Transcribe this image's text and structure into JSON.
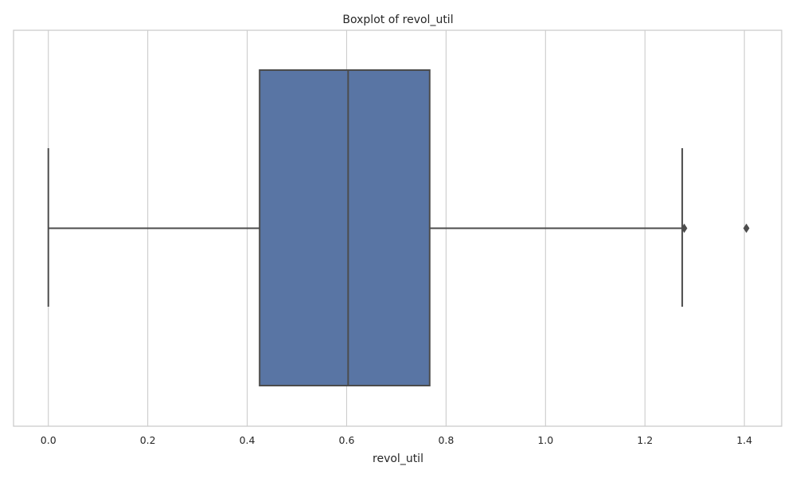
{
  "chart_data": {
    "type": "boxplot",
    "title": "Boxplot of revol_util",
    "xlabel": "revol_util",
    "ylabel": "",
    "xlim": [
      -0.07,
      1.475
    ],
    "grid": true,
    "orientation": "horizontal",
    "xticks": [
      0.0,
      0.2,
      0.4,
      0.6,
      0.8,
      1.0,
      1.2,
      1.4
    ],
    "xtick_labels": [
      "0.0",
      "0.2",
      "0.4",
      "0.6",
      "0.8",
      "1.0",
      "1.2",
      "1.4"
    ],
    "box": {
      "whisker_low": 0.0,
      "q1": 0.425,
      "median": 0.603,
      "q3": 0.767,
      "whisker_high": 1.275
    },
    "outliers": [
      1.279,
      1.404
    ],
    "colors": {
      "box_fill": "#5975a4",
      "line": "#4c4c4c",
      "grid": "#cccccc",
      "frame": "#cccccc"
    }
  }
}
